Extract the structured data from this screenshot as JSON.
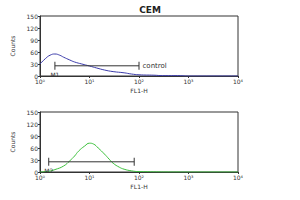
{
  "chart_data": [
    {
      "type": "line",
      "title": "CEM",
      "color": "#3c3caa",
      "x_label": "FL1-H",
      "y_label": "Counts",
      "x": [
        1,
        1.3,
        1.6,
        2,
        2.5,
        3,
        4,
        5,
        7,
        10,
        14,
        20,
        30,
        50,
        70,
        100,
        200,
        300,
        600,
        1000,
        10000
      ],
      "values": [
        30,
        44,
        52,
        55,
        52,
        47,
        40,
        35,
        30,
        25,
        20,
        15,
        11,
        8,
        5,
        3,
        2,
        1,
        1,
        0,
        0
      ],
      "log": "x",
      "xlim": [
        1,
        10000
      ],
      "xticks": [
        {
          "value": 1,
          "label": "10⁰"
        },
        {
          "value": 10,
          "label": "10¹"
        },
        {
          "value": 100,
          "label": "10²"
        },
        {
          "value": 1000,
          "label": "10³"
        },
        {
          "value": 10000,
          "label": "10⁴"
        }
      ],
      "ylim": [
        0,
        150
      ],
      "yticks": [
        0,
        30,
        60,
        90,
        120,
        150
      ],
      "grid": false,
      "gate": {
        "label": "M1",
        "range": [
          2,
          100
        ],
        "note": "control"
      }
    },
    {
      "type": "line",
      "color": "#3cc03c",
      "x_label": "FL1-H",
      "y_label": "Counts",
      "x": [
        1,
        1.5,
        2,
        3,
        4,
        5,
        6,
        8,
        10,
        12,
        15,
        20,
        25,
        30,
        40,
        50,
        70,
        100,
        1000,
        10000
      ],
      "values": [
        0,
        2,
        6,
        15,
        28,
        40,
        52,
        65,
        72,
        70,
        60,
        45,
        32,
        22,
        12,
        7,
        3,
        1,
        0,
        0
      ],
      "log": "x",
      "xlim": [
        1,
        10000
      ],
      "xticks": [
        {
          "value": 1,
          "label": "10⁰"
        },
        {
          "value": 10,
          "label": "10¹"
        },
        {
          "value": 100,
          "label": "10²"
        },
        {
          "value": 1000,
          "label": "10³"
        },
        {
          "value": 10000,
          "label": "10⁴"
        }
      ],
      "ylim": [
        0,
        150
      ],
      "yticks": [
        0,
        30,
        60,
        90,
        120,
        150
      ],
      "grid": false,
      "gate": {
        "label": "M2",
        "range": [
          1.5,
          80
        ]
      }
    }
  ]
}
